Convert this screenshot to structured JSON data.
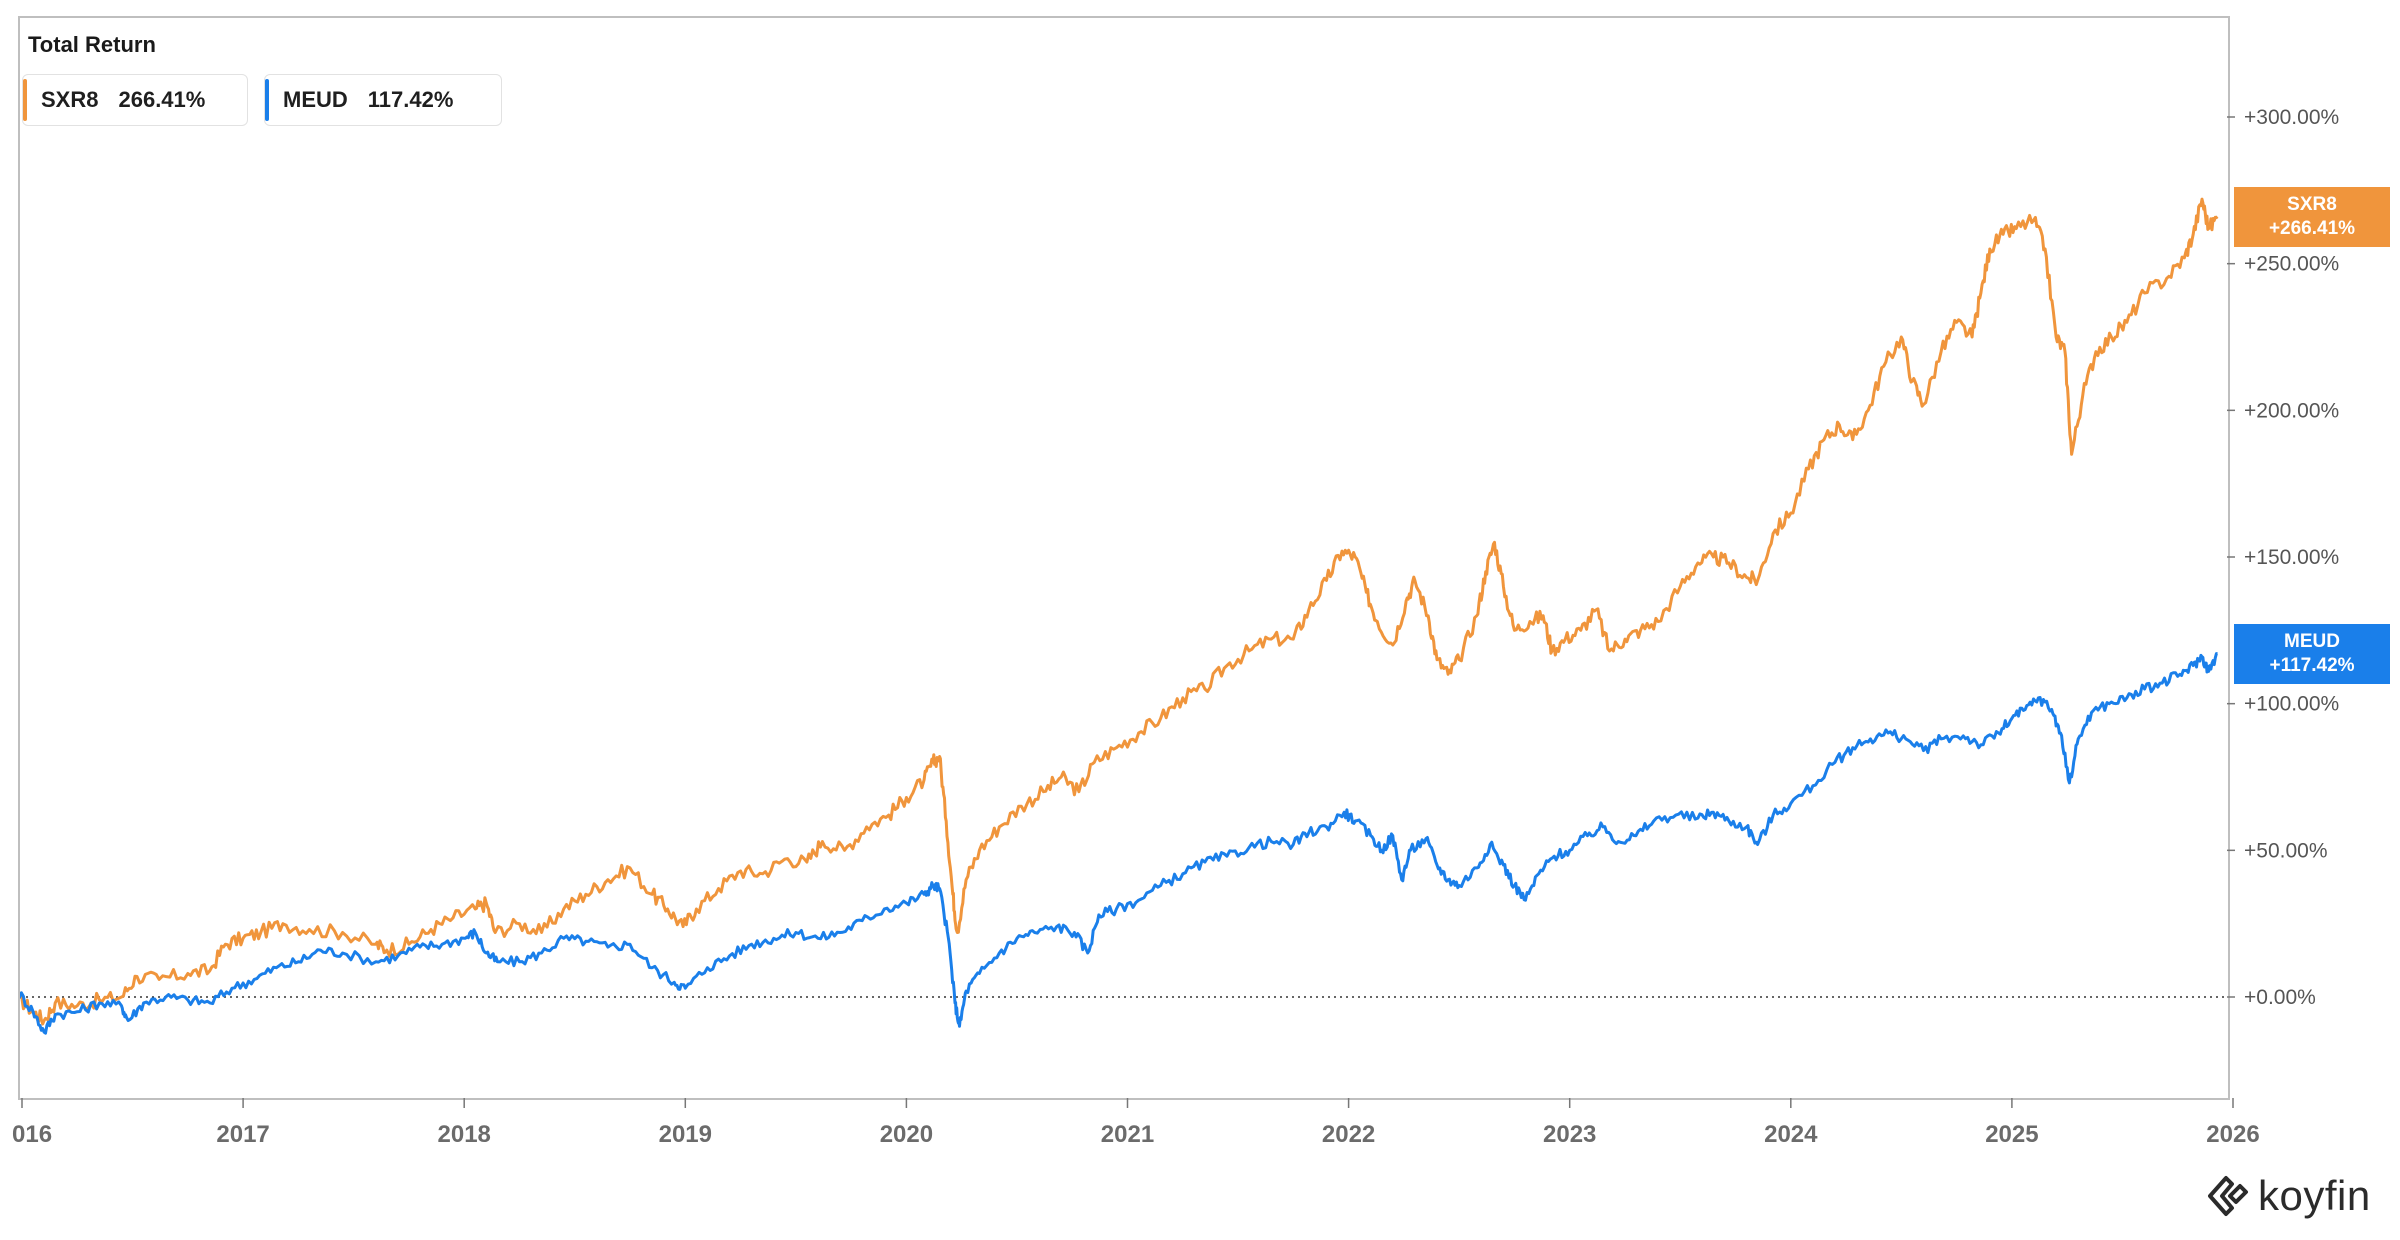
{
  "title": "Total Return",
  "legend": [
    {
      "ticker": "SXR8",
      "value": "266.41%",
      "color": "#F0953C"
    },
    {
      "ticker": "MEUD",
      "value": "117.42%",
      "color": "#1A7FEA"
    }
  ],
  "price_tags": [
    {
      "ticker": "SXR8",
      "value": "+266.41%",
      "color": "#F0953C"
    },
    {
      "ticker": "MEUD",
      "value": "+117.42%",
      "color": "#1A7FEA"
    }
  ],
  "brand": {
    "wordmark": "koyfin",
    "icon": "koyfin-logo-icon"
  },
  "chart_data": {
    "type": "line",
    "title": "Total Return",
    "xlabel": "",
    "ylabel": "",
    "x_ticks": [
      "016",
      "2017",
      "2018",
      "2019",
      "2020",
      "2021",
      "2022",
      "2023",
      "2024",
      "2025",
      "2026"
    ],
    "y_ticks": [
      "+0.00%",
      "+50.00%",
      "+100.00%",
      "+150.00%",
      "+200.00%",
      "+250.00%",
      "+300.00%"
    ],
    "y_tick_values": [
      0,
      50,
      100,
      150,
      200,
      250,
      300
    ],
    "ylim": [
      -35,
      335
    ],
    "xlim": [
      2015.98,
      2026.05
    ],
    "zero_line": "dotted",
    "grid": false,
    "legend_position": "top-left",
    "series": [
      {
        "name": "SXR8",
        "color": "#F0953C",
        "points": [
          [
            2015.98,
            0
          ],
          [
            2016.05,
            -5
          ],
          [
            2016.1,
            -8
          ],
          [
            2016.15,
            -2
          ],
          [
            2016.25,
            -3
          ],
          [
            2016.35,
            -1
          ],
          [
            2016.45,
            0
          ],
          [
            2016.52,
            7
          ],
          [
            2016.62,
            6
          ],
          [
            2016.75,
            8
          ],
          [
            2016.85,
            9
          ],
          [
            2016.92,
            18
          ],
          [
            2017.0,
            20
          ],
          [
            2017.08,
            22
          ],
          [
            2017.18,
            25
          ],
          [
            2017.3,
            23
          ],
          [
            2017.45,
            22
          ],
          [
            2017.6,
            18
          ],
          [
            2017.65,
            16
          ],
          [
            2017.75,
            18
          ],
          [
            2017.85,
            23
          ],
          [
            2017.95,
            27
          ],
          [
            2018.05,
            30
          ],
          [
            2018.1,
            32
          ],
          [
            2018.14,
            22
          ],
          [
            2018.25,
            25
          ],
          [
            2018.35,
            22
          ],
          [
            2018.45,
            30
          ],
          [
            2018.55,
            35
          ],
          [
            2018.65,
            40
          ],
          [
            2018.75,
            44
          ],
          [
            2018.85,
            35
          ],
          [
            2018.92,
            30
          ],
          [
            2018.99,
            24
          ],
          [
            2019.05,
            30
          ],
          [
            2019.15,
            37
          ],
          [
            2019.25,
            43
          ],
          [
            2019.35,
            42
          ],
          [
            2019.45,
            47
          ],
          [
            2019.55,
            46
          ],
          [
            2019.62,
            53
          ],
          [
            2019.72,
            50
          ],
          [
            2019.82,
            58
          ],
          [
            2019.92,
            62
          ],
          [
            2020.0,
            68
          ],
          [
            2020.08,
            74
          ],
          [
            2020.12,
            80
          ],
          [
            2020.15,
            82
          ],
          [
            2020.18,
            60
          ],
          [
            2020.21,
            35
          ],
          [
            2020.23,
            22
          ],
          [
            2020.27,
            40
          ],
          [
            2020.33,
            50
          ],
          [
            2020.42,
            58
          ],
          [
            2020.52,
            65
          ],
          [
            2020.62,
            70
          ],
          [
            2020.7,
            75
          ],
          [
            2020.78,
            70
          ],
          [
            2020.85,
            80
          ],
          [
            2020.95,
            85
          ],
          [
            2021.05,
            90
          ],
          [
            2021.15,
            95
          ],
          [
            2021.25,
            102
          ],
          [
            2021.35,
            105
          ],
          [
            2021.45,
            113
          ],
          [
            2021.55,
            118
          ],
          [
            2021.65,
            122
          ],
          [
            2021.75,
            122
          ],
          [
            2021.82,
            132
          ],
          [
            2021.9,
            142
          ],
          [
            2021.97,
            152
          ],
          [
            2022.03,
            150
          ],
          [
            2022.08,
            138
          ],
          [
            2022.13,
            128
          ],
          [
            2022.2,
            120
          ],
          [
            2022.26,
            135
          ],
          [
            2022.3,
            142
          ],
          [
            2022.36,
            130
          ],
          [
            2022.4,
            115
          ],
          [
            2022.45,
            110
          ],
          [
            2022.5,
            115
          ],
          [
            2022.58,
            130
          ],
          [
            2022.62,
            145
          ],
          [
            2022.66,
            155
          ],
          [
            2022.7,
            140
          ],
          [
            2022.75,
            125
          ],
          [
            2022.82,
            128
          ],
          [
            2022.88,
            130
          ],
          [
            2022.92,
            118
          ],
          [
            2022.98,
            122
          ],
          [
            2023.05,
            125
          ],
          [
            2023.12,
            132
          ],
          [
            2023.18,
            118
          ],
          [
            2023.25,
            122
          ],
          [
            2023.32,
            125
          ],
          [
            2023.4,
            128
          ],
          [
            2023.5,
            140
          ],
          [
            2023.58,
            148
          ],
          [
            2023.65,
            150
          ],
          [
            2023.72,
            148
          ],
          [
            2023.8,
            143
          ],
          [
            2023.85,
            142
          ],
          [
            2023.92,
            158
          ],
          [
            2024.0,
            165
          ],
          [
            2024.08,
            180
          ],
          [
            2024.15,
            190
          ],
          [
            2024.22,
            195
          ],
          [
            2024.28,
            190
          ],
          [
            2024.35,
            200
          ],
          [
            2024.42,
            215
          ],
          [
            2024.5,
            225
          ],
          [
            2024.55,
            210
          ],
          [
            2024.6,
            202
          ],
          [
            2024.68,
            220
          ],
          [
            2024.75,
            230
          ],
          [
            2024.82,
            225
          ],
          [
            2024.86,
            240
          ],
          [
            2024.9,
            255
          ],
          [
            2024.96,
            260
          ],
          [
            2025.02,
            262
          ],
          [
            2025.1,
            265
          ],
          [
            2025.15,
            255
          ],
          [
            2025.2,
            225
          ],
          [
            2025.24,
            220
          ],
          [
            2025.27,
            185
          ],
          [
            2025.32,
            205
          ],
          [
            2025.38,
            220
          ],
          [
            2025.45,
            225
          ],
          [
            2025.52,
            230
          ],
          [
            2025.6,
            240
          ],
          [
            2025.7,
            245
          ],
          [
            2025.78,
            252
          ],
          [
            2025.82,
            260
          ],
          [
            2025.86,
            272
          ],
          [
            2025.89,
            262
          ],
          [
            2025.93,
            266
          ]
        ]
      },
      {
        "name": "MEUD",
        "color": "#1A7FEA",
        "points": [
          [
            2015.98,
            2
          ],
          [
            2016.05,
            -5
          ],
          [
            2016.1,
            -12
          ],
          [
            2016.15,
            -6
          ],
          [
            2016.25,
            -5
          ],
          [
            2016.35,
            -2
          ],
          [
            2016.45,
            -3
          ],
          [
            2016.48,
            -8
          ],
          [
            2016.55,
            -2
          ],
          [
            2016.65,
            0
          ],
          [
            2016.75,
            -1
          ],
          [
            2016.85,
            -2
          ],
          [
            2016.95,
            3
          ],
          [
            2017.05,
            6
          ],
          [
            2017.15,
            10
          ],
          [
            2017.25,
            12
          ],
          [
            2017.35,
            16
          ],
          [
            2017.45,
            15
          ],
          [
            2017.6,
            12
          ],
          [
            2017.7,
            14
          ],
          [
            2017.8,
            17
          ],
          [
            2017.9,
            18
          ],
          [
            2018.0,
            20
          ],
          [
            2018.05,
            22
          ],
          [
            2018.1,
            15
          ],
          [
            2018.15,
            12
          ],
          [
            2018.25,
            12
          ],
          [
            2018.35,
            15
          ],
          [
            2018.45,
            20
          ],
          [
            2018.55,
            19
          ],
          [
            2018.65,
            17
          ],
          [
            2018.75,
            18
          ],
          [
            2018.85,
            10
          ],
          [
            2018.95,
            5
          ],
          [
            2019.0,
            3
          ],
          [
            2019.1,
            10
          ],
          [
            2019.2,
            14
          ],
          [
            2019.3,
            18
          ],
          [
            2019.4,
            20
          ],
          [
            2019.5,
            22
          ],
          [
            2019.6,
            20
          ],
          [
            2019.7,
            22
          ],
          [
            2019.8,
            26
          ],
          [
            2019.9,
            30
          ],
          [
            2020.0,
            32
          ],
          [
            2020.08,
            35
          ],
          [
            2020.12,
            38
          ],
          [
            2020.15,
            37
          ],
          [
            2020.19,
            20
          ],
          [
            2020.22,
            -2
          ],
          [
            2020.24,
            -10
          ],
          [
            2020.27,
            2
          ],
          [
            2020.33,
            8
          ],
          [
            2020.42,
            15
          ],
          [
            2020.5,
            20
          ],
          [
            2020.58,
            22
          ],
          [
            2020.68,
            24
          ],
          [
            2020.76,
            22
          ],
          [
            2020.82,
            15
          ],
          [
            2020.87,
            28
          ],
          [
            2020.95,
            30
          ],
          [
            2021.05,
            33
          ],
          [
            2021.15,
            38
          ],
          [
            2021.25,
            42
          ],
          [
            2021.35,
            46
          ],
          [
            2021.45,
            48
          ],
          [
            2021.55,
            51
          ],
          [
            2021.65,
            53
          ],
          [
            2021.75,
            52
          ],
          [
            2021.82,
            56
          ],
          [
            2021.9,
            58
          ],
          [
            2021.98,
            63
          ],
          [
            2022.03,
            60
          ],
          [
            2022.1,
            55
          ],
          [
            2022.15,
            50
          ],
          [
            2022.2,
            55
          ],
          [
            2022.24,
            40
          ],
          [
            2022.28,
            50
          ],
          [
            2022.35,
            54
          ],
          [
            2022.4,
            45
          ],
          [
            2022.45,
            40
          ],
          [
            2022.5,
            38
          ],
          [
            2022.58,
            44
          ],
          [
            2022.64,
            52
          ],
          [
            2022.7,
            45
          ],
          [
            2022.75,
            38
          ],
          [
            2022.8,
            33
          ],
          [
            2022.86,
            42
          ],
          [
            2022.93,
            48
          ],
          [
            2023.0,
            50
          ],
          [
            2023.08,
            55
          ],
          [
            2023.15,
            58
          ],
          [
            2023.22,
            53
          ],
          [
            2023.3,
            55
          ],
          [
            2023.38,
            60
          ],
          [
            2023.48,
            62
          ],
          [
            2023.58,
            61
          ],
          [
            2023.65,
            63
          ],
          [
            2023.72,
            60
          ],
          [
            2023.8,
            58
          ],
          [
            2023.85,
            52
          ],
          [
            2023.92,
            62
          ],
          [
            2024.0,
            66
          ],
          [
            2024.1,
            72
          ],
          [
            2024.2,
            80
          ],
          [
            2024.28,
            85
          ],
          [
            2024.36,
            88
          ],
          [
            2024.44,
            90
          ],
          [
            2024.52,
            88
          ],
          [
            2024.6,
            84
          ],
          [
            2024.68,
            88
          ],
          [
            2024.78,
            89
          ],
          [
            2024.86,
            86
          ],
          [
            2024.94,
            90
          ],
          [
            2025.0,
            95
          ],
          [
            2025.06,
            98
          ],
          [
            2025.12,
            102
          ],
          [
            2025.18,
            98
          ],
          [
            2025.22,
            90
          ],
          [
            2025.26,
            73
          ],
          [
            2025.3,
            88
          ],
          [
            2025.36,
            97
          ],
          [
            2025.44,
            100
          ],
          [
            2025.52,
            102
          ],
          [
            2025.6,
            105
          ],
          [
            2025.68,
            107
          ],
          [
            2025.76,
            110
          ],
          [
            2025.82,
            113
          ],
          [
            2025.86,
            116
          ],
          [
            2025.89,
            111
          ],
          [
            2025.93,
            117
          ]
        ]
      }
    ]
  }
}
